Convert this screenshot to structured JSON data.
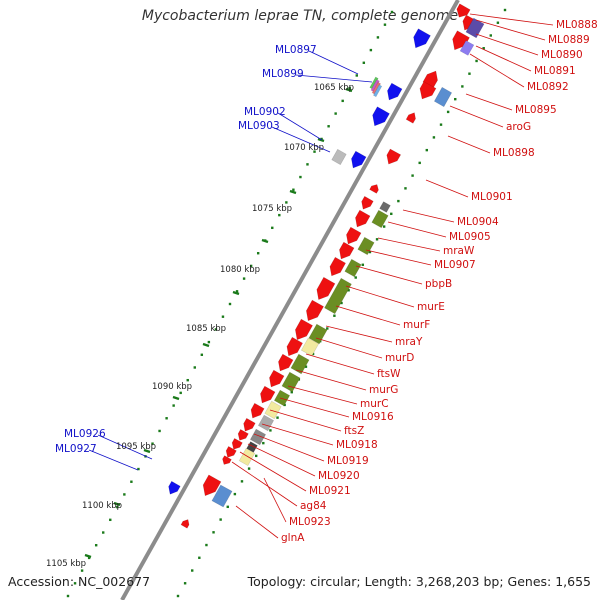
{
  "title": "Mycobacterium leprae TN, complete genome",
  "accession": "Accession: NC_002677",
  "topology": "Topology: circular; Length: 3,268,203 bp; Genes: 1,655",
  "colors": {
    "forward": "#ee1111",
    "reverse": "#1111ee",
    "red_label": "#d01010",
    "blue_label": "#1010c8",
    "backbone": "#8c8c8c",
    "tick": "#1a7a1a",
    "olive": "#6b8e23",
    "pale_yellow": "#f2eaa0",
    "purple": "#5b4ba8",
    "steelblue": "#5a8ed0",
    "grey": "#999999"
  },
  "scale_labels": [
    "1065 kbp",
    "1070 kbp",
    "1075 kbp",
    "1080 kbp",
    "1085 kbp",
    "1090 kbp",
    "1095 kbp",
    "1100 kbp",
    "1105 kbp"
  ],
  "forward_labels": [
    "ML0888",
    "ML0889",
    "ML0890",
    "ML0891",
    "ML0892",
    "ML0895",
    "aroG",
    "ML0898",
    "ML0901",
    "ML0904",
    "ML0905",
    "mraW",
    "ML0907",
    "pbpB",
    "murE",
    "murF",
    "mraY",
    "murD",
    "ftsW",
    "murG",
    "murC",
    "ML0916",
    "ftsZ",
    "ML0918",
    "ML0919",
    "ML0920",
    "ML0921",
    "ag84",
    "ML0923",
    "glnA"
  ],
  "reverse_labels": [
    "ML0897",
    "ML0899",
    "ML0902",
    "ML0903",
    "ML0926",
    "ML0927"
  ]
}
